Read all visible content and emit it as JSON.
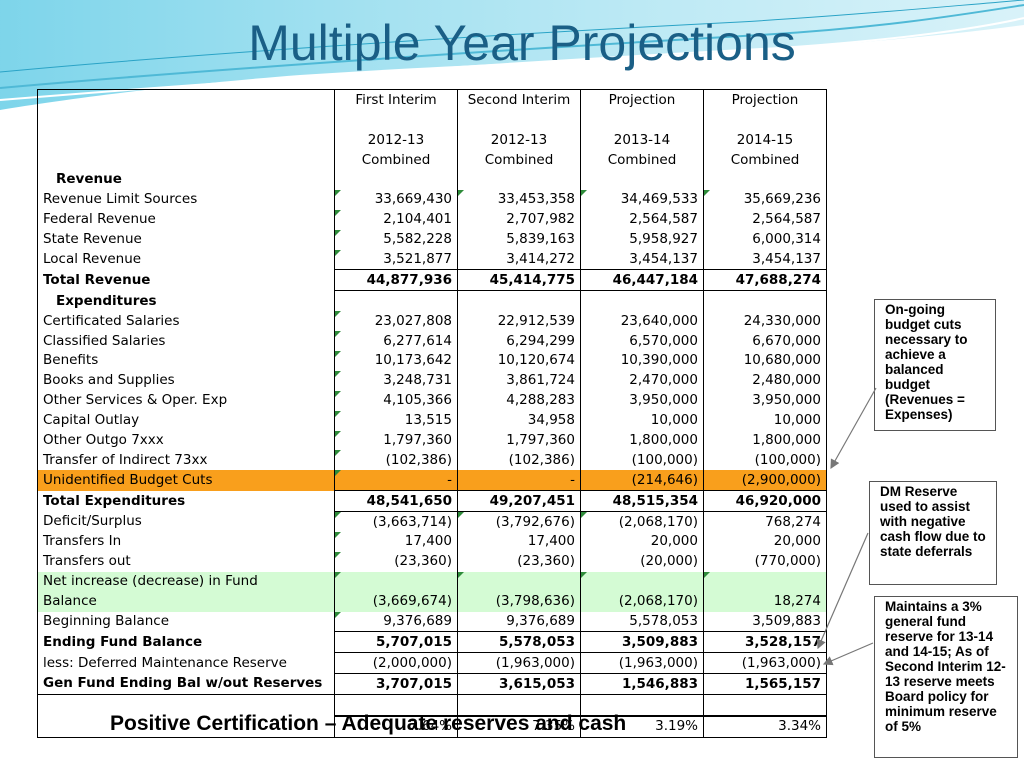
{
  "slide": {
    "title": "Multiple Year Projections",
    "footer": "Positive Certification – Adequate reserves and cash"
  },
  "table": {
    "header_row1": [
      "",
      "First Interim",
      "Second Interim",
      "Projection",
      "Projection"
    ],
    "header_row2": [
      "",
      "",
      "",
      "",
      ""
    ],
    "header_row3": [
      "",
      "2012-13",
      "2012-13",
      "2013-14",
      "2014-15"
    ],
    "header_row4": [
      "",
      "Combined",
      "Combined",
      "Combined",
      "Combined"
    ],
    "rows": [
      {
        "label": "Revenue",
        "values": [
          "",
          "",
          "",
          ""
        ]
      },
      {
        "label": "Revenue Limit Sources",
        "values": [
          "33,669,430",
          "33,453,358",
          "34,469,533",
          "35,669,236"
        ]
      },
      {
        "label": "Federal Revenue",
        "values": [
          "2,104,401",
          "2,707,982",
          "2,564,587",
          "2,564,587"
        ]
      },
      {
        "label": "State Revenue",
        "values": [
          "5,582,228",
          "5,839,163",
          "5,958,927",
          "6,000,314"
        ]
      },
      {
        "label": "Local Revenue",
        "values": [
          "3,521,877",
          "3,414,272",
          "3,454,137",
          "3,454,137"
        ]
      },
      {
        "label": "Total Revenue",
        "values": [
          "44,877,936",
          "45,414,775",
          "46,447,184",
          "47,688,274"
        ]
      },
      {
        "label": "Expenditures",
        "values": [
          "",
          "",
          "",
          ""
        ]
      },
      {
        "label": "Certificated Salaries",
        "values": [
          "23,027,808",
          "22,912,539",
          "23,640,000",
          "24,330,000"
        ]
      },
      {
        "label": "Classified Salaries",
        "values": [
          "6,277,614",
          "6,294,299",
          "6,570,000",
          "6,670,000"
        ]
      },
      {
        "label": "Benefits",
        "values": [
          "10,173,642",
          "10,120,674",
          "10,390,000",
          "10,680,000"
        ]
      },
      {
        "label": "Books and Supplies",
        "values": [
          "3,248,731",
          "3,861,724",
          "2,470,000",
          "2,480,000"
        ]
      },
      {
        "label": "Other Services & Oper. Exp",
        "values": [
          "4,105,366",
          "4,288,283",
          "3,950,000",
          "3,950,000"
        ]
      },
      {
        "label": "Capital Outlay",
        "values": [
          "13,515",
          "34,958",
          "10,000",
          "10,000"
        ]
      },
      {
        "label": "Other Outgo 7xxx",
        "values": [
          "1,797,360",
          "1,797,360",
          "1,800,000",
          "1,800,000"
        ]
      },
      {
        "label": "Transfer of Indirect 73xx",
        "values": [
          "(102,386)",
          "(102,386)",
          "(100,000)",
          "(100,000)"
        ]
      },
      {
        "label": "Unidentified Budget Cuts",
        "values": [
          "-",
          "-",
          "(214,646)",
          "(2,900,000)"
        ]
      },
      {
        "label": "Total Expenditures",
        "values": [
          "48,541,650",
          "49,207,451",
          "48,515,354",
          "46,920,000"
        ]
      },
      {
        "label": "Deficit/Surplus",
        "values": [
          "(3,663,714)",
          "(3,792,676)",
          "(2,068,170)",
          "768,274"
        ]
      },
      {
        "label": "Transfers In",
        "values": [
          "17,400",
          "17,400",
          "20,000",
          "20,000"
        ]
      },
      {
        "label": "Transfers out",
        "values": [
          "(23,360)",
          "(23,360)",
          "(20,000)",
          "(770,000)"
        ]
      },
      {
        "label": "Net increase (decrease) in Fund",
        "values": [
          "",
          "",
          "",
          ""
        ]
      },
      {
        "label": "Balance",
        "values": [
          "(3,669,674)",
          "(3,798,636)",
          "(2,068,170)",
          "18,274"
        ]
      },
      {
        "label": "Beginning Balance",
        "values": [
          "9,376,689",
          "9,376,689",
          "5,578,053",
          "3,509,883"
        ]
      },
      {
        "label": "Ending Fund Balance",
        "values": [
          "5,707,015",
          "5,578,053",
          "3,509,883",
          "3,528,157"
        ]
      },
      {
        "label": "less:  Deferred Maintenance Reserve",
        "values": [
          "(2,000,000)",
          "(1,963,000)",
          "(1,963,000)",
          "(1,963,000)"
        ]
      },
      {
        "label": "Gen Fund Ending Bal w/out Reserves",
        "values": [
          "3,707,015",
          "3,615,053",
          "1,546,883",
          "1,565,157"
        ]
      },
      {
        "label": "",
        "values": [
          "",
          "",
          "",
          ""
        ]
      },
      {
        "label": "",
        "values": [
          "7.64%",
          "7.35%",
          "3.19%",
          "3.34%"
        ]
      }
    ]
  },
  "notes": {
    "note1": "On-going budget cuts necessary to achieve a balanced budget (Revenues = Expenses)",
    "note2": "DM Reserve used to assist with negative cash flow due to state deferrals",
    "note3": "Maintains a 3% general fund reserve for 13-14 and 14-15; As of Second Interim 12-13 reserve meets Board policy for minimum reserve of 5%"
  },
  "colors": {
    "title": "#1a5f86",
    "highlight_row": "#f99f1c",
    "net_increase_row": "#d4fbd4"
  }
}
